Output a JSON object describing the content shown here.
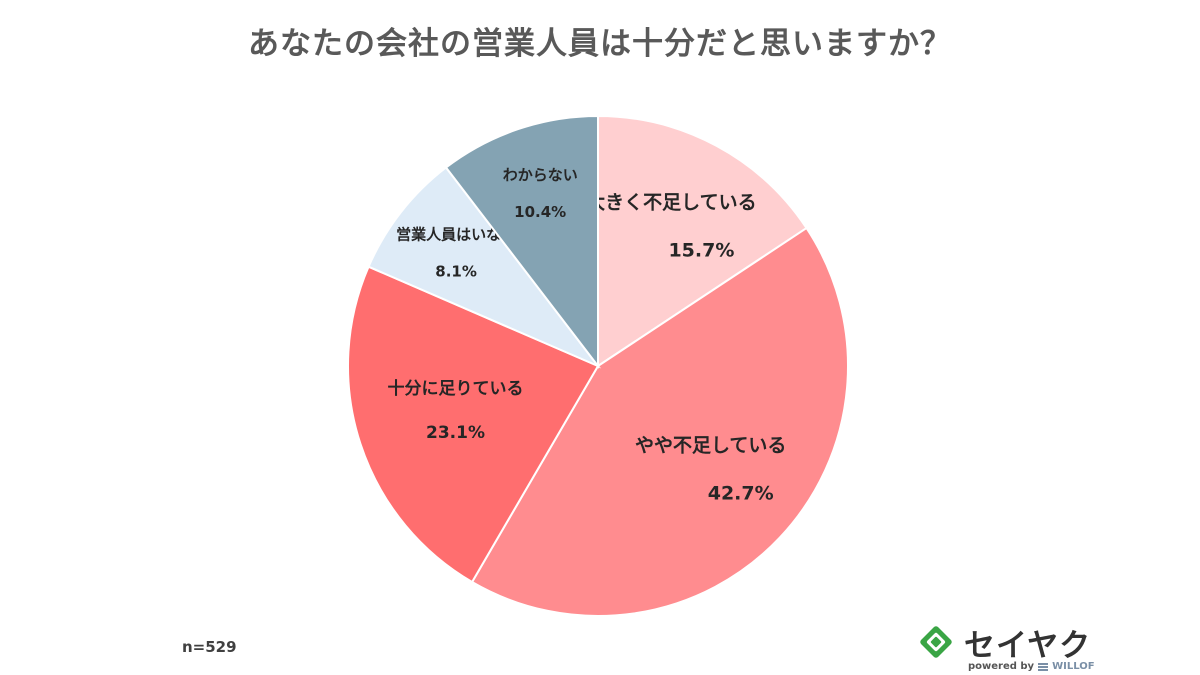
{
  "chart_data": {
    "type": "pie",
    "title": "あなたの会社の営業人員は十分だと思いますか？",
    "start_angle_deg": 0,
    "direction": "clockwise",
    "slices": [
      {
        "label": "大きく不足している",
        "value": 15.7,
        "display": "15.7%",
        "color": "#ffcfd0",
        "label_size": "large"
      },
      {
        "label": "やや不足している",
        "value": 42.7,
        "display": "42.7%",
        "color": "#ff8c8f",
        "label_size": "large"
      },
      {
        "label": "十分に足りている",
        "value": 23.1,
        "display": "23.1%",
        "color": "#ff6e6f",
        "label_size": "medium"
      },
      {
        "label": "営業人員はいない",
        "value": 8.1,
        "display": "8.1%",
        "color": "#deebf7",
        "label_size": "small"
      },
      {
        "label": "わからない",
        "value": 10.4,
        "display": "10.4%",
        "color": "#84a3b3",
        "label_size": "small"
      }
    ],
    "annotation": "n=529",
    "legend": "none"
  },
  "brand": {
    "name": "セイヤク",
    "powered_prefix": "powered by",
    "powered_brand": "WILLOF",
    "mark_color": "#3aa545"
  }
}
